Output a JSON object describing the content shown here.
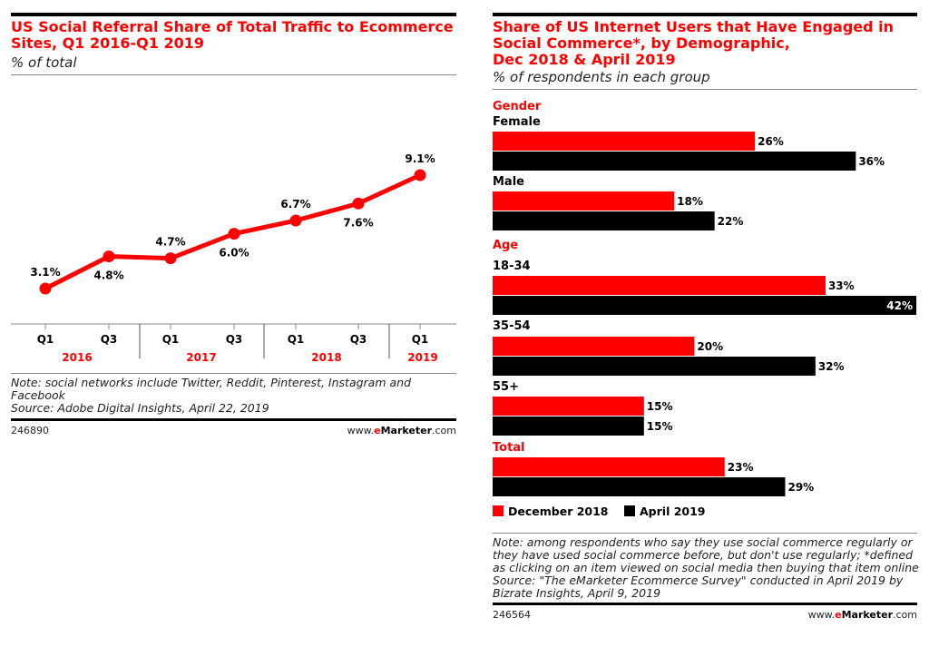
{
  "left": {
    "title_line1": "US Social Referral Share of Total Traffic to Ecommerce",
    "title_line2": "Sites, Q1 2016-Q1 2019",
    "subtitle": "% of total",
    "note_line1": "Note: social networks include Twitter, Reddit, Pinterest, Instagram and",
    "note_line2": "Facebook",
    "source": "Source: Adobe Digital Insights, April 22, 2019",
    "chart_id": "246890",
    "brand_pre": "www.",
    "brand_e": "e",
    "brand_name": "Marketer",
    "brand_post": ".com"
  },
  "right": {
    "title_line1": "Share of US Internet Users that Have Engaged in",
    "title_line2": "Social Commerce*, by Demographic,",
    "title_line3": "Dec 2018 & April 2019",
    "subtitle": "% of respondents in each group",
    "note_lines": [
      "Note: among respondents who say they use social commerce regularly or",
      "they have used social commerce before, but don't use regularly; *defined",
      "as clicking on an item viewed on social media then buying that item online",
      "Source: \"The eMarketer Ecommerce Survey\" conducted in April 2019 by",
      "Bizrate Insights, April 9, 2019"
    ],
    "chart_id": "246564",
    "brand_pre": "www.",
    "brand_e": "e",
    "brand_name": "Marketer",
    "brand_post": ".com"
  },
  "chart_data": [
    {
      "type": "line",
      "title": "US Social Referral Share of Total Traffic to Ecommerce Sites, Q1 2016-Q1 2019",
      "subtitle": "% of total",
      "x": [
        "Q1 2016",
        "Q3 2016",
        "Q1 2017",
        "Q3 2017",
        "Q1 2018",
        "Q3 2018",
        "Q1 2019"
      ],
      "tick_labels": [
        "Q1",
        "Q3",
        "Q1",
        "Q3",
        "Q1",
        "Q3",
        "Q1"
      ],
      "year_labels": [
        "2016",
        "2017",
        "2018",
        "2019"
      ],
      "values": [
        3.1,
        4.8,
        4.7,
        6.0,
        6.7,
        7.6,
        9.1
      ],
      "data_labels": [
        "3.1%",
        "4.8%",
        "4.7%",
        "6.0%",
        "6.7%",
        "7.6%",
        "9.1%"
      ],
      "grid": false,
      "colors": {
        "line": "#ff0000",
        "year_labels": "#ff0000"
      }
    },
    {
      "type": "bar",
      "orientation": "horizontal",
      "title": "Share of US Internet Users that Have Engaged in Social Commerce*, by Demographic, Dec 2018 & April 2019",
      "subtitle": "% of respondents in each group",
      "groups": [
        {
          "name": "Gender",
          "categories": [
            "Female",
            "Male"
          ]
        },
        {
          "name": "Age",
          "categories": [
            "18-34",
            "35-54",
            "55+"
          ]
        },
        {
          "name": "Total",
          "categories": [
            ""
          ]
        }
      ],
      "categories": [
        "Female",
        "Male",
        "18-34",
        "35-54",
        "55+",
        "Total"
      ],
      "series": [
        {
          "name": "December 2018",
          "color": "#ff0000",
          "values": [
            26,
            18,
            33,
            20,
            15,
            23
          ]
        },
        {
          "name": "April 2019",
          "color": "#000000",
          "values": [
            36,
            22,
            42,
            32,
            15,
            29
          ]
        }
      ],
      "xlim": [
        0,
        42
      ],
      "legend": "bottom-left",
      "grid": false
    }
  ]
}
